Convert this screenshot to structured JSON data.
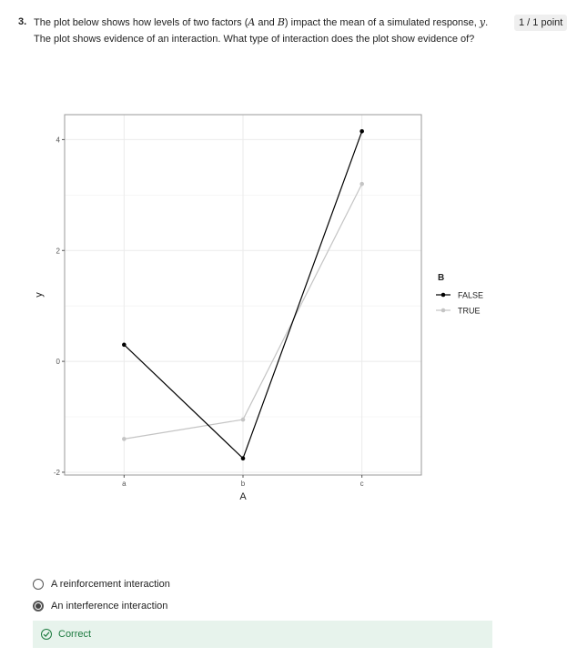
{
  "question": {
    "number": "3.",
    "text_before_a": "The plot below shows how levels of two factors (",
    "factor_a": "A",
    "text_and": " and ",
    "factor_b": "B",
    "text_after_b": ") impact the mean of a simulated response, ",
    "response_var": "y",
    "text_end": ". The plot shows evidence of an interaction.  What type of interaction does the plot show evidence of?",
    "points": "1 / 1 point"
  },
  "chart_data": {
    "type": "line",
    "categories": [
      "a",
      "b",
      "c"
    ],
    "xlabel": "A",
    "ylabel": "y",
    "ylim": [
      -2.05,
      4.45
    ],
    "yticks": [
      -2,
      0,
      2,
      4
    ],
    "grid": true,
    "legend_title": "B",
    "legend_position": "right",
    "series": [
      {
        "name": "FALSE",
        "values": [
          0.3,
          -1.75,
          4.15
        ],
        "color": "#000000"
      },
      {
        "name": "TRUE",
        "values": [
          -1.4,
          -1.05,
          3.2
        ],
        "color": "#c4c4c4"
      }
    ]
  },
  "options": [
    {
      "label": "A reinforcement interaction",
      "selected": false
    },
    {
      "label": "An interference interaction",
      "selected": true
    }
  ],
  "feedback": {
    "label": "Correct",
    "color": "#1c7a3f",
    "background": "#e7f3ec"
  }
}
